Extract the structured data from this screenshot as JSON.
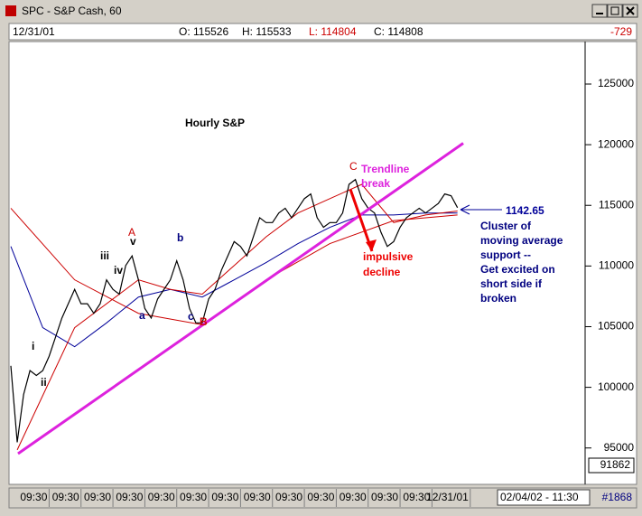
{
  "window": {
    "title": "SPC - S&P Cash, 60"
  },
  "info": {
    "date": "12/31/01",
    "open": "O: 115526",
    "high": "H: 115533",
    "low": "L: 114804",
    "close": "C: 114808",
    "change": "-729"
  },
  "status": {
    "low_box": "91862",
    "cursor": "02/04/02 - 11:30",
    "count": "#1868"
  },
  "chart_data": {
    "type": "line",
    "color": "#000000",
    "values": [
      101770,
      95470,
      99400,
      101380,
      100980,
      101380,
      102560,
      104130,
      105710,
      106890,
      108070,
      106890,
      106890,
      106100,
      106890,
      108860,
      108070,
      107680,
      110040,
      110830,
      108860,
      106500,
      105710,
      107280,
      108070,
      108860,
      110430,
      108860,
      106500,
      105310,
      105310,
      107280,
      108070,
      109650,
      110830,
      112010,
      111610,
      110830,
      112400,
      113980,
      113580,
      113580,
      114370,
      114760,
      113980,
      114760,
      115550,
      115940,
      113980,
      113190,
      113580,
      113580,
      114370,
      116730,
      117130,
      115550,
      114760,
      114370,
      112790,
      111610,
      112010,
      113190,
      113980,
      114370,
      114760,
      114370,
      114760,
      115160,
      115940,
      115790,
      114808
    ],
    "moving_averages": [
      {
        "color": "#cc0000",
        "x": [
          0,
          10,
          20,
          30,
          40,
          50,
          60,
          70
        ],
        "values": [
          114760,
          108860,
          106100,
          105160,
          108860,
          111850,
          113740,
          114210
        ]
      },
      {
        "color": "#000099",
        "x": [
          0,
          5,
          10,
          15,
          20,
          25,
          30,
          35,
          40,
          45,
          50,
          55,
          60,
          65,
          70
        ],
        "values": [
          111610,
          104920,
          103350,
          105310,
          107440,
          108070,
          107440,
          108860,
          110280,
          111850,
          113190,
          114210,
          114210,
          114370,
          114370
        ]
      },
      {
        "color": "#cc0000",
        "x": [
          1,
          10,
          20,
          25,
          30,
          35,
          40,
          45,
          50,
          55,
          60,
          65,
          70
        ],
        "values": [
          94840,
          104920,
          108860,
          108070,
          107680,
          110040,
          112400,
          114370,
          115550,
          116730,
          113580,
          114210,
          114530
        ]
      }
    ],
    "trendlines": [
      {
        "color": "#dd22dd",
        "x": [
          1.13,
          70.9
        ],
        "values": [
          94530,
          120120
        ]
      },
      {
        "color": "#ee0000",
        "x": [
          53.2,
          56.6
        ],
        "values": [
          116340,
          111220
        ]
      }
    ],
    "xlim": [
      0,
      90
    ],
    "ylim": [
      92000,
      128500
    ],
    "yticks": [
      95000,
      100000,
      105000,
      110000,
      115000,
      120000,
      125000
    ],
    "xticks": [
      {
        "value": 6,
        "label": "09:30"
      },
      {
        "value": 11,
        "label": "09:30"
      },
      {
        "value": 16,
        "label": "09:30"
      },
      {
        "value": 21,
        "label": "09:30"
      },
      {
        "value": 26,
        "label": "09:30"
      },
      {
        "value": 31,
        "label": "09:30"
      },
      {
        "value": 36,
        "label": "09:30"
      },
      {
        "value": 41,
        "label": "09:30"
      },
      {
        "value": 46,
        "label": "09:30"
      },
      {
        "value": 51,
        "label": "09:30"
      },
      {
        "value": 56,
        "label": "09:30"
      },
      {
        "value": 61,
        "label": "09:30"
      },
      {
        "value": 66,
        "label": "09:30"
      },
      {
        "value": 72,
        "label": "12/31/01"
      }
    ],
    "annotations": [
      "Hourly S&P",
      "C",
      "Trendline",
      "break",
      "impulsive",
      "decline",
      "1142.65",
      "Cluster of",
      "moving average",
      "support --",
      "Get excited on",
      "short side if",
      "broken",
      "i",
      "ii",
      "iii",
      "iv",
      "v",
      "A",
      "a",
      "b",
      "c",
      "B"
    ]
  }
}
